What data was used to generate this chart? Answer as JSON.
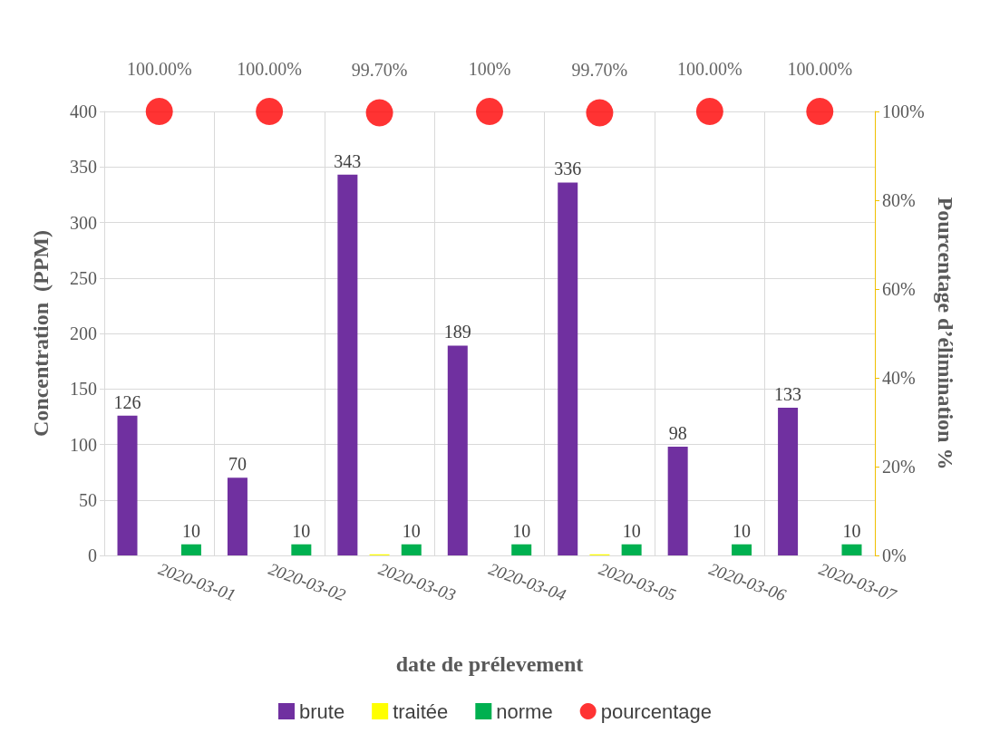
{
  "chart_data": {
    "type": "bar",
    "xlabel": "date de prélevement",
    "ylabel": "Concentration  (PPM)",
    "y2label": "Pourcentage d’élimination %",
    "categories": [
      "2020-03-01",
      "2020-03-02",
      "2020-03-03",
      "2020-03-04",
      "2020-03-05",
      "2020-03-06",
      "2020-03-07"
    ],
    "series": [
      {
        "name": "brute",
        "color": "#7030a0",
        "values": [
          126,
          70,
          343,
          189,
          336,
          98,
          133
        ],
        "value_labels": [
          "126",
          "70",
          "343",
          "189",
          "336",
          "98",
          "133"
        ]
      },
      {
        "name": "traitée",
        "color": "#ffff00",
        "values": [
          0,
          0,
          1,
          0,
          1,
          0,
          0
        ]
      },
      {
        "name": "norme",
        "color": "#00b050",
        "values": [
          10,
          10,
          10,
          10,
          10,
          10,
          10
        ],
        "value_labels": [
          "10",
          "10",
          "10",
          "10",
          "10",
          "10",
          "10"
        ]
      },
      {
        "name": "pourcentage",
        "type": "scatter",
        "axis": "y2",
        "marker": "circle",
        "color": "#ff0000",
        "values": [
          100,
          100,
          99.7,
          100,
          99.7,
          100,
          100
        ],
        "value_labels": [
          "100.00%",
          "100.00%",
          "99.70%",
          "100%",
          "99.70%",
          "100.00%",
          "100.00%"
        ]
      }
    ],
    "ylim": [
      0,
      400
    ],
    "yticks": [
      0,
      50,
      100,
      150,
      200,
      250,
      300,
      350,
      400
    ],
    "y2lim": [
      0,
      100
    ],
    "y2ticks": [
      {
        "value": 0,
        "label": "0%"
      },
      {
        "value": 20,
        "label": "20%"
      },
      {
        "value": 40,
        "label": "40%"
      },
      {
        "value": 60,
        "label": "60%"
      },
      {
        "value": 80,
        "label": "80%"
      },
      {
        "value": 100,
        "label": "100%"
      }
    ],
    "grid": true,
    "legend": "bottom"
  }
}
